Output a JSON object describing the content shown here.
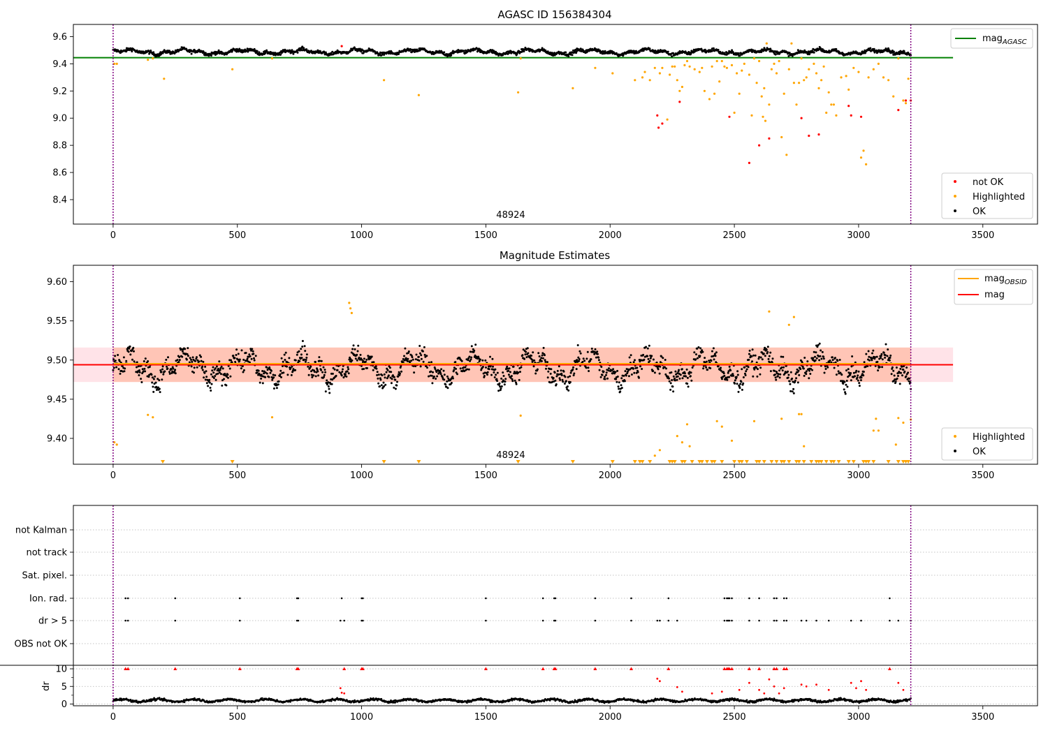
{
  "chart_data": [
    {
      "type": "scatter",
      "title": "AGASC ID 156384304",
      "xlim": [
        -160,
        3720
      ],
      "ylim": [
        8.22,
        9.69
      ],
      "xticks": [
        0,
        500,
        1000,
        1500,
        2000,
        2500,
        3000,
        3500
      ],
      "yticks": [
        8.4,
        8.6,
        8.8,
        9.0,
        9.2,
        9.4,
        9.6
      ],
      "ytick_decimals": 1,
      "obsid_boundaries": [
        0,
        3210
      ],
      "obsid_label": {
        "text": "48924",
        "x": 1600
      },
      "mag_agasc": {
        "value": 9.445,
        "x_range": [
          -160,
          3380
        ],
        "legend_main": "mag",
        "legend_sub": "AGASC",
        "color": "#008000"
      },
      "legend_scatter": [
        {
          "label": "not OK",
          "color": "#ff0000"
        },
        {
          "label": "Highlighted",
          "color": "#ffa500"
        },
        {
          "label": "OK",
          "color": "#000000"
        }
      ],
      "ok_band": {
        "center": 9.488,
        "amplitude": 0.022,
        "noise": 0.012,
        "x_range": [
          0,
          3210
        ],
        "count": 1700
      },
      "highlighted_points": [
        [
          5,
          9.4
        ],
        [
          15,
          9.4
        ],
        [
          140,
          9.43
        ],
        [
          160,
          9.44
        ],
        [
          205,
          9.29
        ],
        [
          480,
          9.36
        ],
        [
          640,
          9.44
        ],
        [
          1090,
          9.28
        ],
        [
          1230,
          9.17
        ],
        [
          1630,
          9.19
        ],
        [
          1640,
          9.44
        ],
        [
          1850,
          9.22
        ],
        [
          1940,
          9.37
        ],
        [
          2010,
          9.33
        ],
        [
          2100,
          9.28
        ],
        [
          2130,
          9.3
        ],
        [
          2140,
          9.34
        ],
        [
          2160,
          9.28
        ],
        [
          2180,
          9.37
        ],
        [
          2200,
          9.33
        ],
        [
          2210,
          9.37
        ],
        [
          2230,
          8.99
        ],
        [
          2240,
          9.32
        ],
        [
          2250,
          9.38
        ],
        [
          2260,
          9.38
        ],
        [
          2270,
          9.28
        ],
        [
          2280,
          9.2
        ],
        [
          2290,
          9.23
        ],
        [
          2300,
          9.39
        ],
        [
          2310,
          9.42
        ],
        [
          2320,
          9.38
        ],
        [
          2340,
          9.36
        ],
        [
          2360,
          9.34
        ],
        [
          2370,
          9.37
        ],
        [
          2380,
          9.2
        ],
        [
          2400,
          9.14
        ],
        [
          2410,
          9.38
        ],
        [
          2420,
          9.18
        ],
        [
          2430,
          9.42
        ],
        [
          2440,
          9.27
        ],
        [
          2450,
          9.42
        ],
        [
          2460,
          9.38
        ],
        [
          2470,
          9.37
        ],
        [
          2490,
          9.39
        ],
        [
          2500,
          9.04
        ],
        [
          2510,
          9.33
        ],
        [
          2520,
          9.18
        ],
        [
          2530,
          9.35
        ],
        [
          2540,
          9.4
        ],
        [
          2560,
          9.32
        ],
        [
          2570,
          9.02
        ],
        [
          2580,
          9.44
        ],
        [
          2590,
          9.26
        ],
        [
          2600,
          9.42
        ],
        [
          2610,
          9.16
        ],
        [
          2615,
          9.01
        ],
        [
          2620,
          9.22
        ],
        [
          2625,
          8.98
        ],
        [
          2630,
          9.55
        ],
        [
          2640,
          9.1
        ],
        [
          2650,
          9.36
        ],
        [
          2660,
          9.4
        ],
        [
          2670,
          9.33
        ],
        [
          2680,
          9.42
        ],
        [
          2690,
          8.86
        ],
        [
          2700,
          9.18
        ],
        [
          2710,
          8.73
        ],
        [
          2720,
          9.36
        ],
        [
          2730,
          9.55
        ],
        [
          2740,
          9.26
        ],
        [
          2750,
          9.1
        ],
        [
          2760,
          9.26
        ],
        [
          2770,
          9.44
        ],
        [
          2780,
          9.28
        ],
        [
          2790,
          9.3
        ],
        [
          2800,
          9.36
        ],
        [
          2820,
          9.4
        ],
        [
          2830,
          9.33
        ],
        [
          2840,
          9.22
        ],
        [
          2850,
          9.28
        ],
        [
          2860,
          9.38
        ],
        [
          2870,
          9.04
        ],
        [
          2880,
          9.19
        ],
        [
          2890,
          9.1
        ],
        [
          2900,
          9.1
        ],
        [
          2910,
          9.02
        ],
        [
          2930,
          9.3
        ],
        [
          2950,
          9.31
        ],
        [
          2960,
          9.21
        ],
        [
          2980,
          9.37
        ],
        [
          3000,
          9.34
        ],
        [
          3010,
          8.71
        ],
        [
          3020,
          8.76
        ],
        [
          3030,
          8.66
        ],
        [
          3040,
          9.3
        ],
        [
          3060,
          9.36
        ],
        [
          3080,
          9.4
        ],
        [
          3100,
          9.3
        ],
        [
          3120,
          9.28
        ],
        [
          3140,
          9.16
        ],
        [
          3160,
          9.44
        ],
        [
          3180,
          9.13
        ],
        [
          3190,
          9.11
        ],
        [
          3200,
          9.29
        ]
      ],
      "notok_points": [
        [
          920,
          9.53
        ],
        [
          2190,
          9.02
        ],
        [
          2195,
          8.93
        ],
        [
          2210,
          8.96
        ],
        [
          2280,
          9.12
        ],
        [
          2480,
          9.01
        ],
        [
          2560,
          8.67
        ],
        [
          2600,
          8.8
        ],
        [
          2640,
          8.85
        ],
        [
          2770,
          9.0
        ],
        [
          2800,
          8.87
        ],
        [
          2840,
          8.88
        ],
        [
          2960,
          9.09
        ],
        [
          2970,
          9.02
        ],
        [
          3010,
          9.01
        ],
        [
          3160,
          9.06
        ],
        [
          3190,
          9.13
        ],
        [
          3210,
          9.13
        ]
      ]
    },
    {
      "type": "scatter",
      "title": "Magnitude Estimates",
      "xlim": [
        -160,
        3720
      ],
      "ylim": [
        9.367,
        9.621
      ],
      "xticks": [
        0,
        500,
        1000,
        1500,
        2000,
        2500,
        3000,
        3500
      ],
      "yticks": [
        9.4,
        9.45,
        9.5,
        9.55,
        9.6
      ],
      "ytick_decimals": 2,
      "obsid_boundaries": [
        0,
        3210
      ],
      "obsid_label": {
        "text": "48924",
        "x": 1600
      },
      "mag_line": {
        "value": 9.494,
        "x_range": [
          -160,
          3380
        ],
        "color": "#ff0000",
        "band": [
          9.472,
          9.516
        ]
      },
      "mag_obsid_line": {
        "value": 9.494,
        "x_range": [
          0,
          3210
        ],
        "color": "#ffa500",
        "band": [
          9.472,
          9.516
        ]
      },
      "legend_lines": [
        {
          "main": "mag",
          "sub": "OBSID",
          "color": "#ffa500"
        },
        {
          "main": "mag",
          "sub": "",
          "color": "#ff0000"
        }
      ],
      "legend_scatter": [
        {
          "label": "Highlighted",
          "color": "#ffa500"
        },
        {
          "label": "OK",
          "color": "#000000"
        }
      ],
      "ok_band": {
        "center": 9.49,
        "amplitude": 0.022,
        "noise": 0.012,
        "x_range": [
          0,
          3210
        ],
        "count": 1700
      },
      "highlighted_points": [
        [
          5,
          9.395
        ],
        [
          15,
          9.392
        ],
        [
          140,
          9.43
        ],
        [
          160,
          9.427
        ],
        [
          640,
          9.427
        ],
        [
          950,
          9.573
        ],
        [
          955,
          9.566
        ],
        [
          960,
          9.56
        ],
        [
          1640,
          9.429
        ],
        [
          2180,
          9.378
        ],
        [
          2200,
          9.385
        ],
        [
          2270,
          9.403
        ],
        [
          2290,
          9.395
        ],
        [
          2310,
          9.418
        ],
        [
          2320,
          9.39
        ],
        [
          2430,
          9.422
        ],
        [
          2450,
          9.415
        ],
        [
          2490,
          9.397
        ],
        [
          2580,
          9.422
        ],
        [
          2640,
          9.562
        ],
        [
          2690,
          9.425
        ],
        [
          2720,
          9.545
        ],
        [
          2740,
          9.555
        ],
        [
          2760,
          9.431
        ],
        [
          2770,
          9.431
        ],
        [
          2780,
          9.39
        ],
        [
          3060,
          9.41
        ],
        [
          3070,
          9.425
        ],
        [
          3080,
          9.41
        ],
        [
          3150,
          9.392
        ],
        [
          3160,
          9.426
        ],
        [
          3180,
          9.42
        ],
        [
          3210,
          9.424
        ]
      ],
      "highlighted_floor": [
        200,
        480,
        1090,
        1230,
        1630,
        1850,
        2010,
        2100,
        2120,
        2130,
        2160,
        2240,
        2250,
        2260,
        2290,
        2300,
        2330,
        2360,
        2370,
        2390,
        2410,
        2420,
        2450,
        2500,
        2520,
        2530,
        2550,
        2590,
        2600,
        2620,
        2650,
        2670,
        2690,
        2700,
        2720,
        2750,
        2760,
        2780,
        2810,
        2830,
        2840,
        2850,
        2870,
        2890,
        2900,
        2920,
        2960,
        2980,
        3020,
        3030,
        3040,
        3060,
        3120,
        3160,
        3180,
        3190,
        3200
      ]
    },
    {
      "type": "scatter",
      "xlim": [
        -160,
        3720
      ],
      "xticks": [
        0,
        500,
        1000,
        1500,
        2000,
        2500,
        3000,
        3500
      ],
      "obsid_boundaries": [
        0,
        3210
      ],
      "flag_rows": [
        "not Kalman",
        "not track",
        "Sat. pixel.",
        "Ion. rad.",
        "dr > 5",
        "OBS not OK"
      ],
      "flag_points": {
        "Ion. rad.": [
          50,
          60,
          250,
          510,
          740,
          745,
          920,
          1000,
          1005,
          1500,
          1730,
          1775,
          1780,
          1940,
          2085,
          2235,
          2460,
          2470,
          2475,
          2480,
          2490,
          2560,
          2600,
          2660,
          2670,
          2700,
          2710,
          3125
        ],
        "dr > 5": [
          50,
          60,
          250,
          510,
          740,
          745,
          915,
          930,
          1000,
          1005,
          1500,
          1730,
          1775,
          1780,
          1940,
          2085,
          2190,
          2200,
          2235,
          2270,
          2460,
          2470,
          2475,
          2480,
          2490,
          2560,
          2600,
          2660,
          2670,
          2700,
          2710,
          2770,
          2790,
          2830,
          2880,
          2970,
          3010,
          3125,
          3160,
          3210
        ]
      },
      "dr": {
        "ylim": [
          -0.5,
          11
        ],
        "yticks": [
          0,
          5,
          10
        ],
        "ylabel": "dr",
        "baseline": 1.0,
        "capped_points": [
          50,
          60,
          250,
          510,
          740,
          745,
          930,
          1000,
          1005,
          1500,
          1730,
          1775,
          1780,
          1940,
          2085,
          2235,
          2460,
          2470,
          2475,
          2480,
          2490,
          2560,
          2600,
          2660,
          2670,
          2700,
          2710,
          3125
        ],
        "red_points": [
          [
            915,
            4.5
          ],
          [
            920,
            3.2
          ],
          [
            930,
            3.0
          ],
          [
            2190,
            7.2
          ],
          [
            2200,
            6.5
          ],
          [
            2270,
            4.8
          ],
          [
            2290,
            3.5
          ],
          [
            2410,
            3.0
          ],
          [
            2450,
            3.5
          ],
          [
            2520,
            4.0
          ],
          [
            2560,
            6.0
          ],
          [
            2600,
            4.0
          ],
          [
            2620,
            3.0
          ],
          [
            2640,
            7.0
          ],
          [
            2660,
            5.0
          ],
          [
            2680,
            3.0
          ],
          [
            2700,
            4.5
          ],
          [
            2770,
            5.5
          ],
          [
            2790,
            5.0
          ],
          [
            2830,
            5.5
          ],
          [
            2880,
            4.0
          ],
          [
            2970,
            6.0
          ],
          [
            2990,
            4.5
          ],
          [
            3010,
            6.5
          ],
          [
            3030,
            4.0
          ],
          [
            3160,
            6.0
          ],
          [
            3180,
            4.0
          ]
        ]
      }
    }
  ]
}
